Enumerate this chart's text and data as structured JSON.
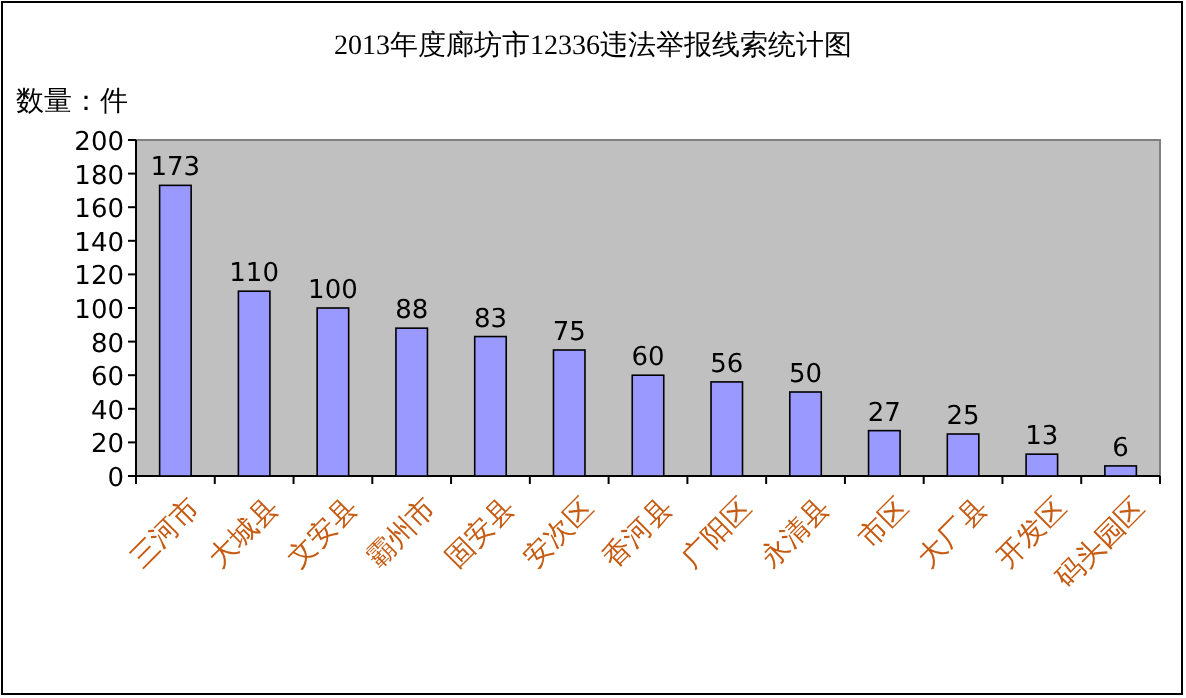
{
  "chart_data": {
    "type": "bar",
    "title": "2013年度廊坊市12336违法举报线索统计图",
    "ylabel": "数量：件",
    "categories": [
      "三河市",
      "大城县",
      "文安县",
      "霸州市",
      "固安县",
      "安次区",
      "香河县",
      "广阳区",
      "永清县",
      "市区",
      "大厂县",
      "开发区",
      "码头园区"
    ],
    "values": [
      173,
      110,
      100,
      88,
      83,
      75,
      60,
      56,
      50,
      27,
      25,
      13,
      6
    ],
    "color": "#9999ff",
    "ylim": [
      0,
      200
    ],
    "yticks": [
      0,
      20,
      40,
      60,
      80,
      100,
      120,
      140,
      160,
      180,
      200
    ],
    "data_labels": true
  }
}
